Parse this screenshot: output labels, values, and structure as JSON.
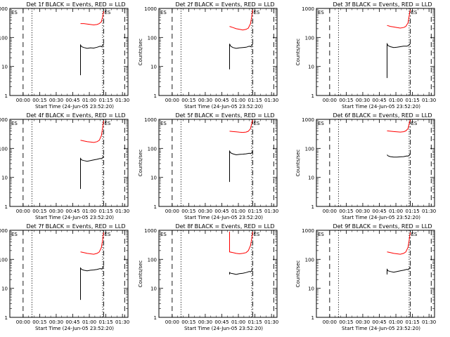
{
  "figure": {
    "x_title": "Start Time (24-Jun-05 23:52:20)",
    "y_title": "Counts/sec",
    "x_ticks": [
      {
        "t": 0,
        "label": "00:00"
      },
      {
        "t": 15,
        "label": "00:15"
      },
      {
        "t": 30,
        "label": "00:30"
      },
      {
        "t": 45,
        "label": "00:45"
      },
      {
        "t": 60,
        "label": "01:00"
      },
      {
        "t": 75,
        "label": "01:15"
      },
      {
        "t": 90,
        "label": "01:30"
      }
    ],
    "y_ticks": [
      {
        "v": 1,
        "label": "1"
      },
      {
        "v": 10,
        "label": "10"
      },
      {
        "v": 100,
        "label": "100"
      },
      {
        "v": 1000,
        "label": "1000"
      }
    ],
    "corner_labels": [
      "ES",
      "ES"
    ],
    "colors": {
      "events": "#000000",
      "lld": "#ff0000",
      "axes": "#000000"
    }
  },
  "chart_data": [
    {
      "type": "line",
      "title": "Det 1f BLACK = Events, RED = LLD",
      "xlim_minutes": [
        -12,
        95
      ],
      "ylim": [
        1,
        1000
      ],
      "y_scale": "log",
      "vlines": {
        "dashed": [
          0,
          92
        ],
        "dotted": [
          8,
          72
        ],
        "dashdot": [
          73
        ]
      },
      "series": [
        {
          "name": "Events",
          "color": "#000000",
          "x": [
            52,
            52,
            53,
            55,
            58,
            61,
            64,
            67,
            70,
            71,
            72,
            73
          ],
          "y": [
            5,
            55,
            48,
            45,
            42,
            44,
            43,
            46,
            50,
            48,
            52,
            58
          ]
        },
        {
          "name": "LLD",
          "color": "#ff0000",
          "x": [
            52,
            55,
            58,
            61,
            64,
            67,
            69,
            71,
            72,
            73
          ],
          "y": [
            300,
            300,
            290,
            280,
            270,
            280,
            300,
            350,
            500,
            800
          ]
        }
      ]
    },
    {
      "type": "line",
      "title": "Det 2f BLACK = Events, RED = LLD",
      "xlim_minutes": [
        -12,
        95
      ],
      "ylim": [
        1,
        1000
      ],
      "y_scale": "log",
      "vlines": {
        "dashed": [
          0,
          92
        ],
        "dotted": [
          8,
          72
        ],
        "dashdot": [
          73
        ]
      },
      "series": [
        {
          "name": "Events",
          "color": "#000000",
          "x": [
            52,
            52,
            53,
            55,
            58,
            61,
            64,
            67,
            70,
            71,
            72,
            73
          ],
          "y": [
            8,
            60,
            50,
            45,
            42,
            44,
            45,
            46,
            50,
            48,
            52,
            60
          ]
        },
        {
          "name": "LLD",
          "color": "#ff0000",
          "x": [
            52,
            55,
            58,
            61,
            64,
            67,
            69,
            71,
            72,
            73
          ],
          "y": [
            240,
            220,
            200,
            190,
            180,
            190,
            210,
            300,
            500,
            900
          ]
        }
      ]
    },
    {
      "type": "line",
      "title": "Det 3f BLACK = Events, RED = LLD",
      "xlim_minutes": [
        -12,
        95
      ],
      "ylim": [
        1,
        1000
      ],
      "y_scale": "log",
      "vlines": {
        "dashed": [
          0,
          92
        ],
        "dotted": [
          8,
          72
        ],
        "dashdot": [
          73
        ]
      },
      "series": [
        {
          "name": "Events",
          "color": "#000000",
          "x": [
            52,
            52,
            53,
            55,
            58,
            61,
            64,
            67,
            70,
            71,
            72,
            73
          ],
          "y": [
            4,
            60,
            52,
            48,
            45,
            46,
            48,
            50,
            50,
            52,
            55,
            62
          ]
        },
        {
          "name": "LLD",
          "color": "#ff0000",
          "x": [
            52,
            55,
            58,
            61,
            64,
            67,
            69,
            71,
            72,
            73
          ],
          "y": [
            260,
            240,
            230,
            220,
            210,
            220,
            240,
            320,
            550,
            900
          ]
        }
      ]
    },
    {
      "type": "line",
      "title": "Det 4f BLACK = Events, RED = LLD",
      "xlim_minutes": [
        -12,
        95
      ],
      "ylim": [
        1,
        1000
      ],
      "y_scale": "log",
      "vlines": {
        "dashed": [
          0,
          92
        ],
        "dotted": [
          8,
          72
        ],
        "dashdot": [
          73
        ]
      },
      "series": [
        {
          "name": "Events",
          "color": "#000000",
          "x": [
            52,
            52,
            53,
            55,
            58,
            61,
            64,
            67,
            70,
            71,
            72,
            73
          ],
          "y": [
            4,
            45,
            40,
            38,
            36,
            38,
            40,
            42,
            45,
            44,
            48,
            55
          ]
        },
        {
          "name": "LLD",
          "color": "#ff0000",
          "x": [
            52,
            55,
            58,
            61,
            64,
            67,
            69,
            71,
            72,
            73
          ],
          "y": [
            190,
            180,
            170,
            165,
            160,
            170,
            190,
            280,
            500,
            900
          ]
        }
      ]
    },
    {
      "type": "line",
      "title": "Det 5f BLACK = Events, RED = LLD",
      "xlim_minutes": [
        -12,
        95
      ],
      "ylim": [
        1,
        1000
      ],
      "y_scale": "log",
      "vlines": {
        "dashed": [
          0,
          92
        ],
        "dotted": [
          8,
          72
        ],
        "dashdot": [
          73
        ]
      },
      "series": [
        {
          "name": "Events",
          "color": "#000000",
          "x": [
            52,
            52,
            53,
            55,
            58,
            61,
            64,
            67,
            70,
            71,
            72,
            73
          ],
          "y": [
            7,
            80,
            70,
            65,
            60,
            62,
            63,
            65,
            68,
            66,
            70,
            80
          ]
        },
        {
          "name": "LLD",
          "color": "#ff0000",
          "x": [
            52,
            55,
            58,
            61,
            64,
            67,
            69,
            71,
            72,
            73
          ],
          "y": [
            390,
            380,
            370,
            360,
            355,
            365,
            390,
            480,
            700,
            950
          ]
        }
      ]
    },
    {
      "type": "line",
      "title": "Det 6f BLACK = Events, RED = LLD",
      "xlim_minutes": [
        -12,
        95
      ],
      "ylim": [
        1,
        1000
      ],
      "y_scale": "log",
      "vlines": {
        "dashed": [
          0,
          92
        ],
        "dotted": [
          8,
          72
        ],
        "dashdot": [
          73
        ]
      },
      "series": [
        {
          "name": "Events",
          "color": "#000000",
          "x": [
            52,
            52,
            53,
            55,
            58,
            61,
            64,
            67,
            70,
            71,
            72,
            73
          ],
          "y": [
            60,
            60,
            55,
            52,
            50,
            50,
            51,
            52,
            55,
            54,
            58,
            65
          ]
        },
        {
          "name": "LLD",
          "color": "#ff0000",
          "x": [
            52,
            55,
            58,
            61,
            64,
            67,
            69,
            71,
            72,
            73
          ],
          "y": [
            400,
            390,
            380,
            370,
            365,
            375,
            400,
            480,
            700,
            950
          ]
        }
      ]
    },
    {
      "type": "line",
      "title": "Det 7f BLACK = Events, RED = LLD",
      "xlim_minutes": [
        -12,
        95
      ],
      "ylim": [
        1,
        1000
      ],
      "y_scale": "log",
      "vlines": {
        "dashed": [
          0,
          92
        ],
        "dotted": [
          8,
          72
        ],
        "dashdot": [
          73
        ]
      },
      "series": [
        {
          "name": "Events",
          "color": "#000000",
          "x": [
            52,
            52,
            53,
            55,
            58,
            61,
            64,
            67,
            70,
            71,
            72,
            73
          ],
          "y": [
            4,
            50,
            45,
            42,
            40,
            42,
            43,
            45,
            48,
            46,
            50,
            58
          ]
        },
        {
          "name": "LLD",
          "color": "#ff0000",
          "x": [
            52,
            55,
            58,
            61,
            64,
            67,
            69,
            71,
            72,
            73
          ],
          "y": [
            180,
            170,
            160,
            155,
            150,
            160,
            180,
            260,
            450,
            850
          ]
        }
      ]
    },
    {
      "type": "line",
      "title": "Det 8f BLACK = Events, RED = LLD",
      "xlim_minutes": [
        -12,
        95
      ],
      "ylim": [
        1,
        1000
      ],
      "y_scale": "log",
      "vlines": {
        "dashed": [
          0,
          92
        ],
        "dotted": [
          8,
          72
        ],
        "dashdot": [
          73
        ]
      },
      "series": [
        {
          "name": "Events",
          "color": "#000000",
          "x": [
            52,
            52,
            53,
            55,
            58,
            61,
            64,
            67,
            70,
            71,
            72,
            73
          ],
          "y": [
            30,
            35,
            33,
            32,
            30,
            32,
            33,
            35,
            38,
            37,
            40,
            48
          ]
        },
        {
          "name": "LLD",
          "color": "#ff0000",
          "x": [
            52,
            52,
            55,
            58,
            61,
            64,
            67,
            69,
            71,
            72,
            73
          ],
          "y": [
            900,
            180,
            170,
            160,
            155,
            160,
            170,
            200,
            300,
            500,
            900
          ]
        }
      ]
    },
    {
      "type": "line",
      "title": "Det 9f BLACK = Events, RED = LLD",
      "xlim_minutes": [
        -12,
        95
      ],
      "ylim": [
        1,
        1000
      ],
      "y_scale": "log",
      "vlines": {
        "dashed": [
          0,
          92
        ],
        "dotted": [
          8,
          72
        ],
        "dashdot": [
          73
        ]
      },
      "series": [
        {
          "name": "Events",
          "color": "#000000",
          "x": [
            52,
            52,
            53,
            55,
            58,
            61,
            64,
            67,
            70,
            71,
            72,
            73
          ],
          "y": [
            30,
            45,
            40,
            38,
            36,
            38,
            40,
            42,
            45,
            44,
            48,
            55
          ]
        },
        {
          "name": "LLD",
          "color": "#ff0000",
          "x": [
            52,
            55,
            58,
            61,
            64,
            67,
            69,
            71,
            72,
            73
          ],
          "y": [
            180,
            170,
            160,
            155,
            150,
            160,
            180,
            260,
            450,
            850
          ]
        }
      ]
    }
  ]
}
